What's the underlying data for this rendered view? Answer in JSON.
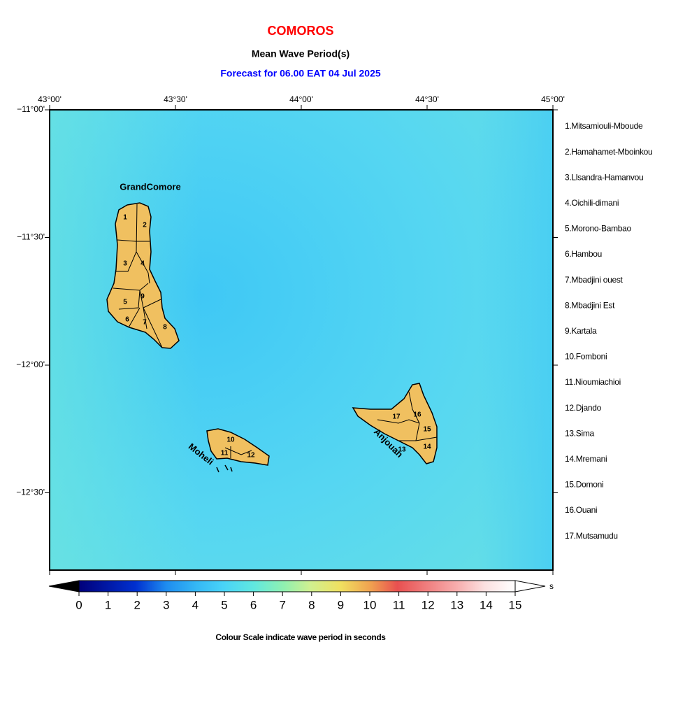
{
  "header": {
    "title": "COMOROS",
    "subtitle": "Mean Wave Period(s)",
    "forecast": "Forecast for  06.00 EAT 04 Jul 2025"
  },
  "map": {
    "lon_ticks": [
      "43°00'",
      "43°30'",
      "44°00'",
      "44°30'",
      "45°00'"
    ],
    "lat_ticks": [
      "−11°00'",
      "−11°30'",
      "−12°00'",
      "−12°30'"
    ],
    "islands": [
      "GrandComore",
      "Moheli",
      "Anjouan"
    ],
    "region_numbers": [
      "1",
      "2",
      "3",
      "4",
      "5",
      "6",
      "7",
      "8",
      "9",
      "10",
      "11",
      "12",
      "13",
      "14",
      "15",
      "16",
      "17"
    ]
  },
  "legend": {
    "regions": [
      "1.Mitsamiouli-Mboude",
      "2.Hamahamet-Mboinkou",
      "3.Llsandra-Hamanvou",
      "4.Oichili-dimani",
      "5.Morono-Bambao",
      "6.Hambou",
      "7.Mbadjini ouest",
      "8.Mbadjini Est",
      "9.Kartala",
      "10.Fomboni",
      "11.Nioumiachioi",
      "12.Djando",
      "13.Sima",
      "14.Mremani",
      "15.Domoni",
      "16.Ouani",
      "17.Mutsamudu"
    ]
  },
  "colorbar": {
    "range": [
      0,
      15
    ],
    "ticks": [
      0,
      1,
      2,
      3,
      4,
      5,
      6,
      7,
      8,
      9,
      10,
      11,
      12,
      13,
      14,
      15
    ],
    "unit": "s",
    "caption": "Colour Scale indicate wave period in seconds"
  }
}
